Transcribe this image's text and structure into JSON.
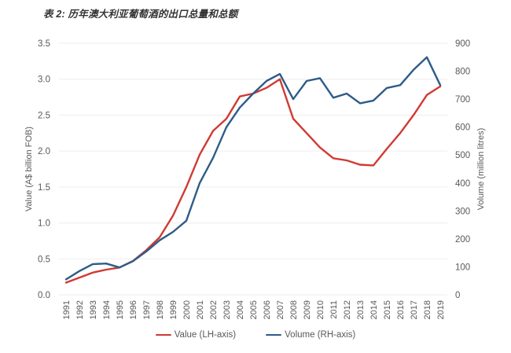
{
  "title": "表 2: 历年澳大利亚葡萄酒的出口总量和总额",
  "chart_data": {
    "type": "line",
    "x": [
      1991,
      1992,
      1993,
      1994,
      1995,
      1996,
      1997,
      1998,
      1999,
      2000,
      2001,
      2002,
      2003,
      2004,
      2005,
      2006,
      2007,
      2008,
      2009,
      2010,
      2011,
      2012,
      2013,
      2014,
      2015,
      2016,
      2017,
      2018,
      2019
    ],
    "series": [
      {
        "name": "Value (LH-axis)",
        "axis": "left",
        "color": "#d03a33",
        "values": [
          0.17,
          0.24,
          0.31,
          0.35,
          0.38,
          0.47,
          0.62,
          0.8,
          1.1,
          1.5,
          1.95,
          2.28,
          2.45,
          2.76,
          2.8,
          2.88,
          3.0,
          2.45,
          2.25,
          2.05,
          1.9,
          1.87,
          1.81,
          1.8,
          2.03,
          2.25,
          2.5,
          2.78,
          2.9
        ]
      },
      {
        "name": "Volume (RH-axis)",
        "axis": "right",
        "color": "#2e5c88",
        "values": [
          55,
          85,
          110,
          112,
          98,
          120,
          155,
          195,
          225,
          265,
          400,
          490,
          600,
          670,
          720,
          765,
          790,
          700,
          765,
          775,
          705,
          720,
          685,
          695,
          740,
          750,
          805,
          850,
          750
        ]
      }
    ],
    "left_axis": {
      "label": "Value (A$ billion FOB)",
      "min": 0,
      "max": 3.5,
      "step": 0.5,
      "ticks": [
        "0.0",
        "0.5",
        "1.0",
        "1.5",
        "2.0",
        "2.5",
        "3.0",
        "3.5"
      ]
    },
    "right_axis": {
      "label": "Volume (million litres)",
      "min": 0,
      "max": 900,
      "step": 100,
      "ticks": [
        "0",
        "100",
        "200",
        "300",
        "400",
        "500",
        "600",
        "700",
        "800",
        "900"
      ]
    },
    "grid": true,
    "grid_color": "#ededed",
    "tick_label_color": "#595959",
    "legend_position": "bottom"
  }
}
